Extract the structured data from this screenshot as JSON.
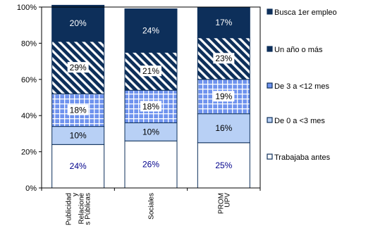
{
  "chart_data": {
    "type": "bar",
    "stacked": true,
    "percent_stacked": true,
    "categories": [
      [
        "Publicidad",
        "y",
        "Relacione",
        "s Públicas"
      ],
      [
        "Sociales"
      ],
      [
        "PROM",
        "UPV"
      ]
    ],
    "series": [
      {
        "name": "Trabajaba antes",
        "values": [
          24,
          26,
          25
        ],
        "labels": [
          "24%",
          "26%",
          "25%"
        ],
        "color": "#ffffff",
        "pattern": "solid",
        "label_color": "#00008b"
      },
      {
        "name": "De 0 a <3 mes",
        "values": [
          10,
          10,
          16
        ],
        "labels": [
          "10%",
          "10%",
          "16%"
        ],
        "color": "#b8d0f5",
        "pattern": "solid",
        "label_color": "#000000"
      },
      {
        "name": "De 3 a <12 mes",
        "values": [
          18,
          18,
          19
        ],
        "labels": [
          "18%",
          "18%",
          "19%"
        ],
        "color": "#6f93ee",
        "pattern": "grid",
        "label_color": "#000000"
      },
      {
        "name": "Un año o más",
        "values": [
          29,
          21,
          23
        ],
        "labels": [
          "29%",
          "21%",
          "23%"
        ],
        "color": "#0d2f5a",
        "pattern": "diagonal",
        "label_color": "#000000"
      },
      {
        "name": "Busca 1er empleo",
        "values": [
          20,
          24,
          17
        ],
        "labels": [
          "20%",
          "24%",
          "17%"
        ],
        "color": "#0d2f5a",
        "pattern": "solid",
        "label_color": "#ffffff"
      }
    ],
    "yticks": [
      "0%",
      "20%",
      "40%",
      "60%",
      "80%",
      "100%"
    ],
    "ylim": [
      0,
      100
    ],
    "legend_position": "right",
    "grid": false,
    "title": "",
    "xlabel": "",
    "ylabel": ""
  }
}
